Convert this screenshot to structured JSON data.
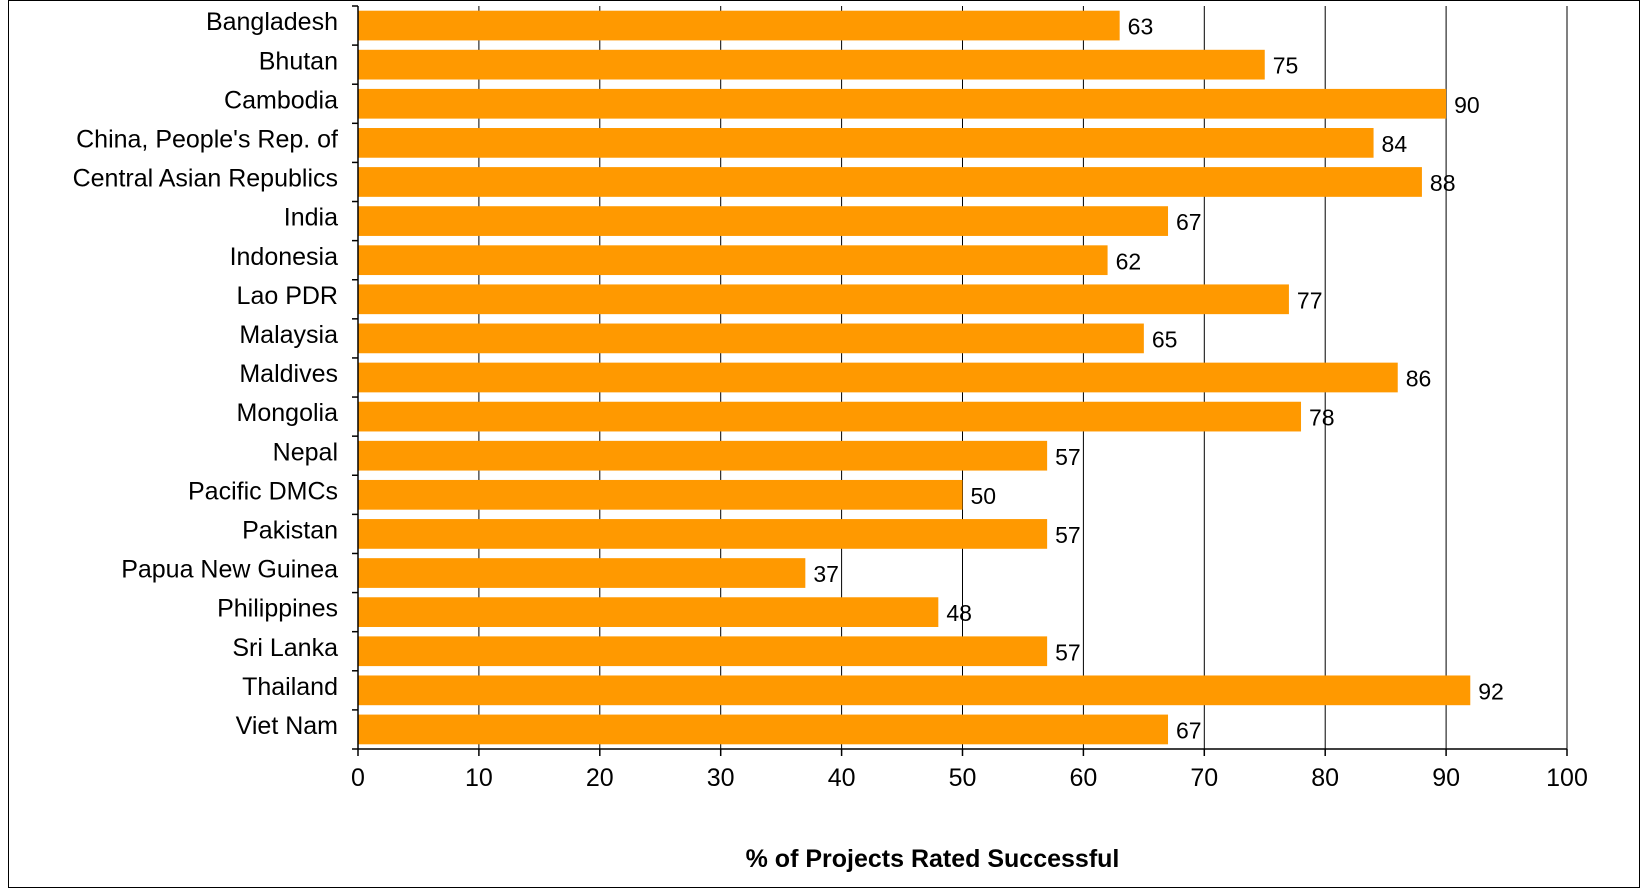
{
  "chart_data": {
    "type": "bar",
    "orientation": "horizontal",
    "title": "",
    "xlabel": "% of Projects Rated Successful",
    "ylabel": "",
    "xlim": [
      0,
      100
    ],
    "x_ticks": [
      "0",
      "10",
      "20",
      "30",
      "40",
      "50",
      "60",
      "70",
      "80",
      "90",
      "100"
    ],
    "grid": "vertical",
    "legend": "none",
    "colors": {
      "bar": "#ff9900",
      "grid": "#000000"
    },
    "categories": [
      "Bangladesh",
      "Bhutan",
      "Cambodia",
      "China, People's Rep. of",
      "Central Asian Republics",
      "India",
      "Indonesia",
      "Lao PDR",
      "Malaysia",
      "Maldives",
      "Mongolia",
      "Nepal",
      "Pacific DMCs",
      "Pakistan",
      "Papua New Guinea",
      "Philippines",
      "Sri Lanka",
      "Thailand",
      "Viet Nam"
    ],
    "values": [
      63,
      75,
      90,
      84,
      88,
      67,
      62,
      77,
      65,
      86,
      78,
      57,
      50,
      57,
      37,
      48,
      57,
      92,
      67
    ],
    "value_labels": [
      "63",
      "75",
      "90",
      "84",
      "88",
      "67",
      "62",
      "77",
      "65",
      "86",
      "78",
      "57",
      "50",
      "57",
      "37",
      "48",
      "57",
      "92",
      "67"
    ]
  }
}
